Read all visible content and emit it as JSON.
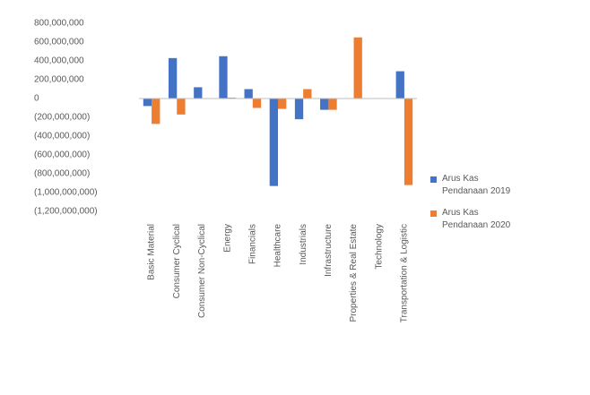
{
  "chart_data": {
    "type": "bar",
    "categories": [
      "Basic Material",
      "Consumer Cyclical",
      "Consumer Non-Cyclical",
      "Energy",
      "Financials",
      "Healthcare",
      "Industrials",
      "Infrastructure",
      "Properties & Real Estate",
      "Technology",
      "Transportation & Logistic"
    ],
    "series": [
      {
        "name": "Arus Kas Pendanaan 2019",
        "color": "#4472c4",
        "values": [
          -80000000,
          430000000,
          120000000,
          450000000,
          100000000,
          -930000000,
          -220000000,
          -120000000,
          5000000,
          5000000,
          290000000
        ]
      },
      {
        "name": "Arus Kas Pendanaan 2020",
        "color": "#ed7d31",
        "values": [
          -270000000,
          -170000000,
          5000000,
          10000000,
          -100000000,
          -110000000,
          100000000,
          -120000000,
          650000000,
          5000000,
          -920000000
        ]
      }
    ],
    "ylim": [
      -1200000000,
      800000000
    ],
    "yticks": [
      {
        "value": 800000000,
        "label": "800,000,000"
      },
      {
        "value": 600000000,
        "label": "600,000,000"
      },
      {
        "value": 400000000,
        "label": "400,000,000"
      },
      {
        "value": 200000000,
        "label": "200,000,000"
      },
      0,
      {
        "value": -200000000,
        "label": "(200,000,000)"
      },
      {
        "value": -400000000,
        "label": "(400,000,000)"
      },
      {
        "value": -600000000,
        "label": "(600,000,000)"
      },
      {
        "value": -800000000,
        "label": "(800,000,000)"
      },
      {
        "value": -1000000000,
        "label": "(1,000,000,000)"
      },
      {
        "value": -1200000000,
        "label": "(1,200,000,000)"
      }
    ],
    "grid": false,
    "legend": "right"
  }
}
